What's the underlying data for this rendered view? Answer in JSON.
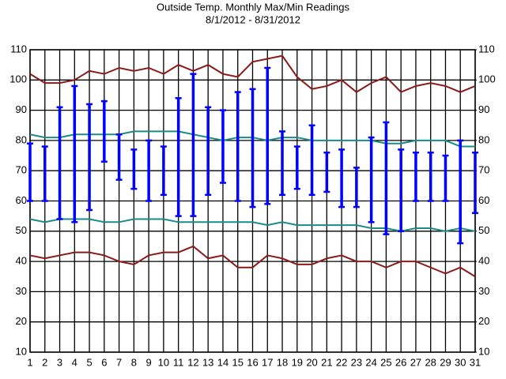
{
  "chart_data": {
    "type": "line",
    "title": "Outside Temp. Monthly Max/Min Readings",
    "subtitle": "8/1/2012 - 8/31/2012",
    "x": [
      1,
      2,
      3,
      4,
      5,
      6,
      7,
      8,
      9,
      10,
      11,
      12,
      13,
      14,
      15,
      16,
      17,
      18,
      19,
      20,
      21,
      22,
      23,
      24,
      25,
      26,
      27,
      28,
      29,
      30,
      31
    ],
    "xlim": [
      1,
      31
    ],
    "xticks": [
      1,
      2,
      3,
      4,
      5,
      6,
      7,
      8,
      9,
      10,
      11,
      12,
      13,
      14,
      15,
      16,
      17,
      18,
      19,
      20,
      21,
      22,
      23,
      24,
      25,
      26,
      27,
      28,
      29,
      30,
      31
    ],
    "ylim": [
      10,
      110
    ],
    "yticks": [
      10,
      20,
      30,
      40,
      50,
      60,
      70,
      80,
      90,
      100,
      110
    ],
    "y2lim": [
      10,
      110
    ],
    "y2ticks": [
      10,
      20,
      30,
      40,
      50,
      60,
      70,
      80,
      90,
      100,
      110
    ],
    "grid": true,
    "series": [
      {
        "color": "#8b1a1a",
        "values": [
          102,
          99,
          99,
          100,
          103,
          102,
          104,
          103,
          104,
          102,
          105,
          103,
          105,
          102,
          101,
          106,
          107,
          108,
          101,
          97,
          98,
          100,
          96,
          99,
          101,
          96,
          98,
          99,
          98,
          96,
          98
        ]
      },
      {
        "color": "#1a8b8b",
        "values": [
          82,
          81,
          81,
          82,
          82,
          82,
          82,
          83,
          83,
          83,
          83,
          82,
          81,
          80,
          81,
          81,
          80,
          81,
          81,
          80,
          80,
          80,
          80,
          80,
          79,
          79,
          80,
          80,
          80,
          78,
          78
        ]
      },
      {
        "color": "#1a8b8b",
        "values": [
          54,
          53,
          54,
          54,
          54,
          53,
          53,
          54,
          54,
          54,
          53,
          53,
          53,
          53,
          53,
          53,
          52,
          53,
          52,
          52,
          52,
          52,
          52,
          51,
          51,
          50,
          51,
          51,
          50,
          51,
          50
        ]
      },
      {
        "color": "#8b1a1a",
        "values": [
          42,
          41,
          42,
          43,
          43,
          42,
          40,
          39,
          42,
          43,
          43,
          45,
          41,
          42,
          38,
          38,
          42,
          41,
          39,
          39,
          41,
          42,
          40,
          40,
          38,
          40,
          40,
          38,
          36,
          38,
          35
        ]
      }
    ],
    "ranges": {
      "color": "#0000ff",
      "high": [
        79,
        78,
        91,
        98,
        92,
        93,
        82,
        77,
        80,
        78,
        94,
        102,
        91,
        90,
        96,
        97,
        104,
        83,
        78,
        85,
        76,
        77,
        71,
        81,
        86,
        77,
        76,
        76,
        75,
        80,
        76
      ],
      "low": [
        60,
        60,
        54,
        53,
        57,
        73,
        67,
        64,
        60,
        62,
        55,
        55,
        62,
        66,
        60,
        58,
        59,
        62,
        64,
        62,
        63,
        58,
        58,
        53,
        49,
        50,
        60,
        60,
        60,
        46,
        56
      ]
    }
  }
}
